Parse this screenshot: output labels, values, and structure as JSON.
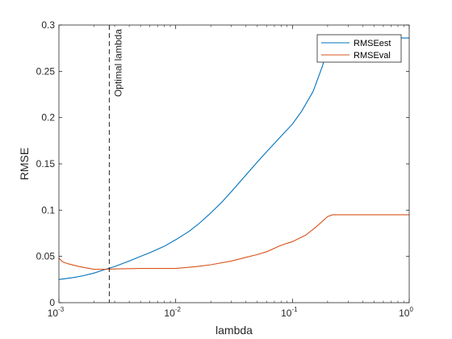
{
  "chart_data": {
    "type": "line",
    "xscale": "log",
    "xlabel": "lambda",
    "ylabel": "RMSE",
    "xlim": [
      0.001,
      1
    ],
    "ylim": [
      0,
      0.3
    ],
    "xticks": [
      {
        "value": 0.001,
        "base": "10",
        "exp": "-3"
      },
      {
        "value": 0.01,
        "base": "10",
        "exp": "-2"
      },
      {
        "value": 0.1,
        "base": "10",
        "exp": "-1"
      },
      {
        "value": 1,
        "base": "10",
        "exp": "0"
      }
    ],
    "yticks": [
      "0",
      "0.05",
      "0.1",
      "0.15",
      "0.2",
      "0.25",
      "0.3"
    ],
    "grid": false,
    "legend_position": "top-right",
    "series": [
      {
        "name": "RMSEest",
        "color": "#0072bd",
        "x": [
          0.001,
          0.0013,
          0.0016,
          0.002,
          0.0025,
          0.003,
          0.004,
          0.005,
          0.006,
          0.008,
          0.01,
          0.013,
          0.016,
          0.02,
          0.025,
          0.03,
          0.04,
          0.05,
          0.06,
          0.08,
          0.1,
          0.12,
          0.15,
          0.18,
          0.2,
          0.21,
          0.22,
          1
        ],
        "y": [
          0.025,
          0.027,
          0.029,
          0.032,
          0.036,
          0.039,
          0.045,
          0.05,
          0.054,
          0.061,
          0.068,
          0.077,
          0.086,
          0.097,
          0.109,
          0.12,
          0.138,
          0.152,
          0.163,
          0.18,
          0.193,
          0.207,
          0.228,
          0.255,
          0.275,
          0.284,
          0.286,
          0.286
        ]
      },
      {
        "name": "RMSEval",
        "color": "#d95319",
        "x": [
          0.001,
          0.00108,
          0.0012,
          0.0015,
          0.002,
          0.0025,
          0.003,
          0.005,
          0.008,
          0.01,
          0.015,
          0.02,
          0.03,
          0.04,
          0.05,
          0.06,
          0.08,
          0.1,
          0.13,
          0.16,
          0.2,
          0.22,
          0.25,
          1
        ],
        "y": [
          0.048,
          0.044,
          0.042,
          0.039,
          0.036,
          0.036,
          0.0365,
          0.037,
          0.037,
          0.037,
          0.039,
          0.041,
          0.045,
          0.049,
          0.052,
          0.055,
          0.062,
          0.066,
          0.073,
          0.082,
          0.093,
          0.095,
          0.095,
          0.095
        ]
      }
    ],
    "annotations": [
      {
        "type": "vline",
        "x": 0.0027,
        "label": "Optimal lambda",
        "color": "#262626",
        "style": "dashed"
      }
    ]
  }
}
